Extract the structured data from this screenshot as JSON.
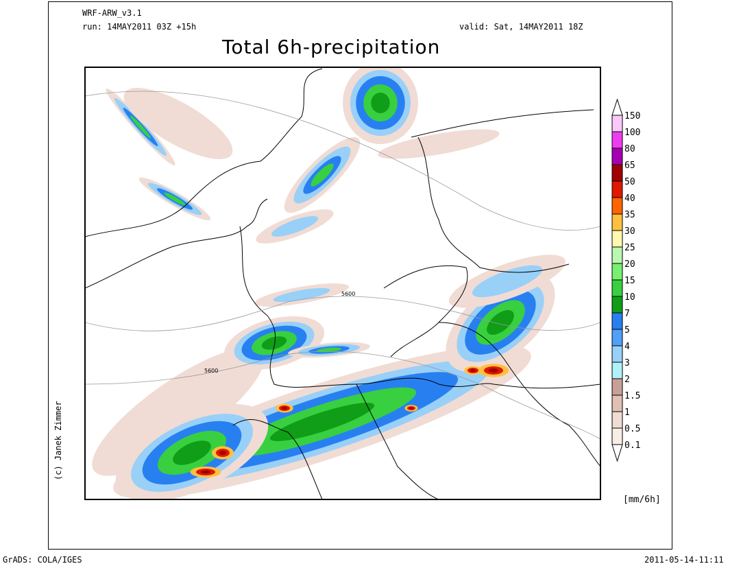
{
  "header": {
    "model": "WRF-ARW_v3.1",
    "run": "run: 14MAY2011 03Z +15h",
    "valid": "valid: Sat, 14MAY2011 18Z",
    "title": "Total 6h-precipitation"
  },
  "credit": "(c) Janek Zimmer",
  "footer": {
    "left": "GrADS: COLA/IGES",
    "right": "2011-05-14-11:11"
  },
  "contour_labels": [
    "5600",
    "5600"
  ],
  "legend": {
    "unit": "[mm/6h]",
    "levels": [
      "150",
      "100",
      "80",
      "65",
      "50",
      "40",
      "35",
      "30",
      "25",
      "20",
      "15",
      "10",
      "7",
      "5",
      "4",
      "3",
      "2",
      "1.5",
      "1",
      "0.5",
      "0.1"
    ],
    "colors": [
      "#f8c8f8",
      "#f03cf0",
      "#a600b4",
      "#a00000",
      "#e01800",
      "#ff6400",
      "#ffc040",
      "#fff8b0",
      "#b8f8b0",
      "#78f070",
      "#38d040",
      "#109e18",
      "#2880f0",
      "#50a0f8",
      "#98d0f8",
      "#b0f0f8",
      "#c8a098",
      "#e0c0b4",
      "#f0dcd4",
      "#f8eee6"
    ]
  },
  "colors": {
    "light_brown": "#f0dcd4",
    "light_blue": "#98d0f8",
    "blue": "#2880f0",
    "green": "#38d040",
    "dark_green": "#109e18",
    "red": "#e01800",
    "dark_red": "#a00000",
    "orange": "#ffc040"
  }
}
